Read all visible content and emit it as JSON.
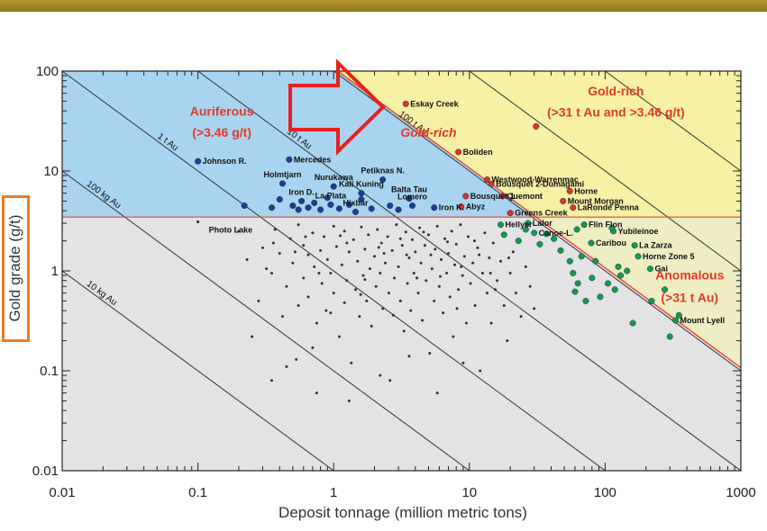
{
  "chart_data": {
    "type": "scatter",
    "xlabel": "Deposit tonnage (million metric tons)",
    "ylabel": "Gold grade (g/t)",
    "x_scale": "log",
    "y_scale": "log",
    "xlim": [
      0.01,
      1000
    ],
    "ylim": [
      0.01,
      100
    ],
    "x_tick_labels": [
      "0.01",
      "0.1",
      "1",
      "10",
      "100",
      "1000"
    ],
    "y_tick_labels": [
      "0.01",
      "0.1",
      "1",
      "10",
      "100"
    ],
    "grade_threshold": 3.46,
    "tonnage_threshold": 31,
    "isolines": [
      {
        "label": "10 kg Au",
        "au_tonnes": 0.01
      },
      {
        "label": "100 kg Au",
        "au_tonnes": 0.1
      },
      {
        "label": "1 t Au",
        "au_tonnes": 1
      },
      {
        "label": "10 t Au",
        "au_tonnes": 10
      },
      {
        "label": "100 t Au",
        "au_tonnes": 100
      },
      {
        "label": "",
        "au_tonnes": 1000
      },
      {
        "label": "",
        "au_tonnes": 10000
      }
    ],
    "regions": {
      "auriferous": [
        "Auriferous",
        "(>3.46 g/t)"
      ],
      "gold_rich": [
        "Gold-rich",
        "(>31 t Au and >3.46 g/t)"
      ],
      "gold_rich_inner": "Gold-rich",
      "anomalous": [
        "Anomalous",
        "(>31 t Au)"
      ]
    },
    "colors": {
      "auriferous_fill": "#a9d4f0",
      "gold_rich_fill": "#f6f1a4",
      "background_fill": "#e3e3e5",
      "threshold_line": "#e8452c",
      "auriferous_points": "#1e3f8f",
      "gold_rich_points": "#d8352b",
      "anomalous_points": "#159a4a",
      "annotation_arrow": "#e8201c"
    },
    "series": [
      {
        "name": "Auriferous",
        "color": "#1e3f8f",
        "points": [
          {
            "label": "Johnson R.",
            "x": 0.1,
            "y": 12.5
          },
          {
            "label": "Mercedes",
            "x": 0.47,
            "y": 13
          },
          {
            "label": "Holmtjarn",
            "x": 0.42,
            "y": 7.5
          },
          {
            "label": "Nurukawa",
            "x": 1,
            "y": 7
          },
          {
            "label": "Petiknas N.",
            "x": 2.3,
            "y": 8.2
          },
          {
            "label": "Kali Kuning",
            "x": 1.6,
            "y": 6
          },
          {
            "label": "Iron D.",
            "x": 0.58,
            "y": 5
          },
          {
            "label": "La Plata",
            "x": 0.95,
            "y": 4.6
          },
          {
            "label": "Balta Tau",
            "x": 3.6,
            "y": 5.3
          },
          {
            "label": "Lomero",
            "x": 3.8,
            "y": 4.5
          },
          {
            "label": "Hixbar",
            "x": 1.45,
            "y": 3.9
          },
          {
            "label": "Iron K.",
            "x": 5.5,
            "y": 4.3
          },
          {
            "label": "",
            "x": 0.22,
            "y": 4.5
          },
          {
            "label": "",
            "x": 0.35,
            "y": 4.3
          },
          {
            "label": "",
            "x": 0.4,
            "y": 5.2
          },
          {
            "label": "",
            "x": 0.5,
            "y": 4.5
          },
          {
            "label": "",
            "x": 0.55,
            "y": 4.1
          },
          {
            "label": "",
            "x": 0.65,
            "y": 4.3
          },
          {
            "label": "",
            "x": 0.72,
            "y": 4.8
          },
          {
            "label": "",
            "x": 0.8,
            "y": 4.1
          },
          {
            "label": "",
            "x": 1.3,
            "y": 4.6
          },
          {
            "label": "",
            "x": 1.6,
            "y": 5.2
          },
          {
            "label": "",
            "x": 1.9,
            "y": 4.2
          },
          {
            "label": "",
            "x": 2.6,
            "y": 4.5
          },
          {
            "label": "",
            "x": 3.0,
            "y": 4.1
          },
          {
            "label": "",
            "x": 0.9,
            "y": 5.4
          },
          {
            "label": "",
            "x": 1.1,
            "y": 4.2
          }
        ]
      },
      {
        "name": "Gold-rich",
        "color": "#d8352b",
        "points": [
          {
            "label": "Eskay Creek",
            "x": 3.4,
            "y": 47
          },
          {
            "label": "Boliden",
            "x": 8.3,
            "y": 15.5
          },
          {
            "label": "Westwood-Warrenmac",
            "x": 13.5,
            "y": 8.2
          },
          {
            "label": "Bousquet 2-Dumagami",
            "x": 14.5,
            "y": 7.4
          },
          {
            "label": "Bousquet 1",
            "x": 9.4,
            "y": 5.6
          },
          {
            "label": "Quemont",
            "x": 17.5,
            "y": 5.6
          },
          {
            "label": "Horne",
            "x": 55,
            "y": 6.3
          },
          {
            "label": "Mount Morgan",
            "x": 49,
            "y": 5
          },
          {
            "label": "LaRonde Penna",
            "x": 58,
            "y": 4.3
          },
          {
            "label": "Abyz",
            "x": 8.7,
            "y": 4.4
          },
          {
            "label": "Greens Creek",
            "x": 20,
            "y": 3.8
          },
          {
            "label": "",
            "x": 31,
            "y": 28
          }
        ]
      },
      {
        "name": "Anomalous",
        "color": "#159a4a",
        "points": [
          {
            "label": "Hellyer",
            "x": 17,
            "y": 2.9
          },
          {
            "label": "Lalor",
            "x": 27,
            "y": 3
          },
          {
            "label": "Canoe-L.",
            "x": 30,
            "y": 2.4
          },
          {
            "label": "Flin Flon",
            "x": 70,
            "y": 2.9
          },
          {
            "label": "Yubileinoe",
            "x": 115,
            "y": 2.5
          },
          {
            "label": "Caribou",
            "x": 79,
            "y": 1.9
          },
          {
            "label": "La Zarza",
            "x": 165,
            "y": 1.8
          },
          {
            "label": "Horne Zone 5",
            "x": 175,
            "y": 1.4
          },
          {
            "label": "Gai",
            "x": 215,
            "y": 1.05
          },
          {
            "label": "Mount Lyell",
            "x": 330,
            "y": 0.32
          },
          {
            "label": "",
            "x": 18,
            "y": 2.3
          },
          {
            "label": "",
            "x": 23,
            "y": 2.0
          },
          {
            "label": "",
            "x": 26,
            "y": 2.6
          },
          {
            "label": "",
            "x": 33,
            "y": 1.85
          },
          {
            "label": "",
            "x": 37,
            "y": 2.35
          },
          {
            "label": "",
            "x": 42,
            "y": 2.1
          },
          {
            "label": "",
            "x": 47,
            "y": 1.6
          },
          {
            "label": "",
            "x": 55,
            "y": 1.25
          },
          {
            "label": "",
            "x": 58,
            "y": 0.95
          },
          {
            "label": "",
            "x": 60,
            "y": 0.62
          },
          {
            "label": "",
            "x": 63,
            "y": 0.75
          },
          {
            "label": "",
            "x": 67,
            "y": 1.4
          },
          {
            "label": "",
            "x": 72,
            "y": 0.5
          },
          {
            "label": "",
            "x": 80,
            "y": 0.85
          },
          {
            "label": "",
            "x": 85,
            "y": 1.25
          },
          {
            "label": "",
            "x": 92,
            "y": 0.55
          },
          {
            "label": "",
            "x": 105,
            "y": 0.75
          },
          {
            "label": "",
            "x": 118,
            "y": 0.65
          },
          {
            "label": "",
            "x": 125,
            "y": 1.1
          },
          {
            "label": "",
            "x": 130,
            "y": 0.9
          },
          {
            "label": "",
            "x": 145,
            "y": 1.0
          },
          {
            "label": "",
            "x": 160,
            "y": 0.3
          },
          {
            "label": "",
            "x": 220,
            "y": 0.5
          },
          {
            "label": "",
            "x": 275,
            "y": 0.65
          },
          {
            "label": "",
            "x": 300,
            "y": 0.22
          },
          {
            "label": "",
            "x": 350,
            "y": 0.36
          },
          {
            "label": "",
            "x": 62,
            "y": 2.6
          },
          {
            "label": "",
            "x": 112,
            "y": 2.7
          }
        ]
      },
      {
        "name": "",
        "color": "#222222",
        "points": [
          {
            "label": "Photo Lake",
            "x": 0.1,
            "y": 3.1
          }
        ]
      }
    ],
    "background_points": [
      [
        0.2,
        2.5
      ],
      [
        0.23,
        1.3
      ],
      [
        0.25,
        0.22
      ],
      [
        0.3,
        1.7
      ],
      [
        0.32,
        1.05
      ],
      [
        0.35,
        0.95
      ],
      [
        0.35,
        0.08
      ],
      [
        0.37,
        2.6
      ],
      [
        0.4,
        1.5
      ],
      [
        0.42,
        0.35
      ],
      [
        0.45,
        0.7
      ],
      [
        0.48,
        2.1
      ],
      [
        0.5,
        1.2
      ],
      [
        0.53,
        0.13
      ],
      [
        0.55,
        0.45
      ],
      [
        0.55,
        2.9
      ],
      [
        0.6,
        0.85
      ],
      [
        0.6,
        1.8
      ],
      [
        0.65,
        0.55
      ],
      [
        0.65,
        1.45
      ],
      [
        0.7,
        2.4
      ],
      [
        0.72,
        1.1
      ],
      [
        0.75,
        0.3
      ],
      [
        0.75,
        0.06
      ],
      [
        0.8,
        1.6
      ],
      [
        0.82,
        0.75
      ],
      [
        0.85,
        2.2
      ],
      [
        0.88,
        0.4
      ],
      [
        0.9,
        1.3
      ],
      [
        0.95,
        0.95
      ],
      [
        1.0,
        2.8
      ],
      [
        1.0,
        0.6
      ],
      [
        1.05,
        1.75
      ],
      [
        1.1,
        0.22
      ],
      [
        1.15,
        1.15
      ],
      [
        1.2,
        2.5
      ],
      [
        1.2,
        0.48
      ],
      [
        1.25,
        0.8
      ],
      [
        1.3,
        1.55
      ],
      [
        1.35,
        0.12
      ],
      [
        1.4,
        2.05
      ],
      [
        1.45,
        0.65
      ],
      [
        1.5,
        1.25
      ],
      [
        1.55,
        0.35
      ],
      [
        1.6,
        2.75
      ],
      [
        1.65,
        0.9
      ],
      [
        1.7,
        1.65
      ],
      [
        1.75,
        0.5
      ],
      [
        1.8,
        2.3
      ],
      [
        1.85,
        1.05
      ],
      [
        1.9,
        0.28
      ],
      [
        2.0,
        1.4
      ],
      [
        2.05,
        0.7
      ],
      [
        2.1,
        2.6
      ],
      [
        2.2,
        0.95
      ],
      [
        2.25,
        1.9
      ],
      [
        2.3,
        0.42
      ],
      [
        2.4,
        1.2
      ],
      [
        2.5,
        2.2
      ],
      [
        2.55,
        0.6
      ],
      [
        2.6,
        0.08
      ],
      [
        2.7,
        1.6
      ],
      [
        2.8,
        0.85
      ],
      [
        2.9,
        2.9
      ],
      [
        3.0,
        1.1
      ],
      [
        3.1,
        0.5
      ],
      [
        3.2,
        1.8
      ],
      [
        3.3,
        0.25
      ],
      [
        3.4,
        2.45
      ],
      [
        3.5,
        0.75
      ],
      [
        3.6,
        1.35
      ],
      [
        3.7,
        0.4
      ],
      [
        3.8,
        2.05
      ],
      [
        3.9,
        0.95
      ],
      [
        4.0,
        1.55
      ],
      [
        4.2,
        0.6
      ],
      [
        4.3,
        2.7
      ],
      [
        4.4,
        1.2
      ],
      [
        4.5,
        0.32
      ],
      [
        4.7,
        1.8
      ],
      [
        4.8,
        0.8
      ],
      [
        5.0,
        2.3
      ],
      [
        5.1,
        0.15
      ],
      [
        5.3,
        1.05
      ],
      [
        5.5,
        0.5
      ],
      [
        5.6,
        1.65
      ],
      [
        5.8,
        2.8
      ],
      [
        6.0,
        0.7
      ],
      [
        6.2,
        1.3
      ],
      [
        6.4,
        0.38
      ],
      [
        6.6,
        2.1
      ],
      [
        6.8,
        0.95
      ],
      [
        7.0,
        1.5
      ],
      [
        7.2,
        0.55
      ],
      [
        7.4,
        2.5
      ],
      [
        7.6,
        0.22
      ],
      [
        7.8,
        1.15
      ],
      [
        8.0,
        1.85
      ],
      [
        8.3,
        0.65
      ],
      [
        8.6,
        2.9
      ],
      [
        8.9,
        0.9
      ],
      [
        9.2,
        1.4
      ],
      [
        9.5,
        0.3
      ],
      [
        9.8,
        2.2
      ],
      [
        10.2,
        0.75
      ],
      [
        10.6,
        1.2
      ],
      [
        11.0,
        0.45
      ],
      [
        11.5,
        1.7
      ],
      [
        12.0,
        0.1
      ],
      [
        12.5,
        0.95
      ],
      [
        13.0,
        2.4
      ],
      [
        13.5,
        0.6
      ],
      [
        14.0,
        1.35
      ],
      [
        14.5,
        0.3
      ],
      [
        15.0,
        1.9
      ],
      [
        16.0,
        0.8
      ],
      [
        17.0,
        1.25
      ],
      [
        18.0,
        0.45
      ],
      [
        19.0,
        0.2
      ],
      [
        20.0,
        0.95
      ],
      [
        21.0,
        1.55
      ],
      [
        22.0,
        0.6
      ],
      [
        24.0,
        0.35
      ],
      [
        26.0,
        1.1
      ],
      [
        28.0,
        0.7
      ],
      [
        30.0,
        0.42
      ],
      [
        0.45,
        0.11
      ],
      [
        0.7,
        0.17
      ],
      [
        1.3,
        0.05
      ],
      [
        2.2,
        0.09
      ],
      [
        3.6,
        0.14
      ],
      [
        5.8,
        0.06
      ],
      [
        9.0,
        0.12
      ],
      [
        0.28,
        0.5
      ],
      [
        0.36,
        1.9
      ],
      [
        0.62,
        2.2
      ],
      [
        0.95,
        0.38
      ],
      [
        1.25,
        1.9
      ],
      [
        1.7,
        0.82
      ],
      [
        2.35,
        1.5
      ],
      [
        3.1,
        2.1
      ],
      [
        4.1,
        0.85
      ],
      [
        5.2,
        1.45
      ],
      [
        6.9,
        1.95
      ],
      [
        8.7,
        1.1
      ],
      [
        11.8,
        1.45
      ],
      [
        15.5,
        0.65
      ],
      [
        0.52,
        1.55
      ],
      [
        0.78,
        0.95
      ],
      [
        1.12,
        2.25
      ],
      [
        1.58,
        0.58
      ],
      [
        2.15,
        1.72
      ],
      [
        2.75,
        0.36
      ],
      [
        3.45,
        1.45
      ],
      [
        4.6,
        2.45
      ],
      [
        6.1,
        0.88
      ],
      [
        8.1,
        0.42
      ],
      [
        10.9,
        2.0
      ],
      [
        14.3,
        0.95
      ],
      [
        19.5,
        1.35
      ]
    ]
  }
}
